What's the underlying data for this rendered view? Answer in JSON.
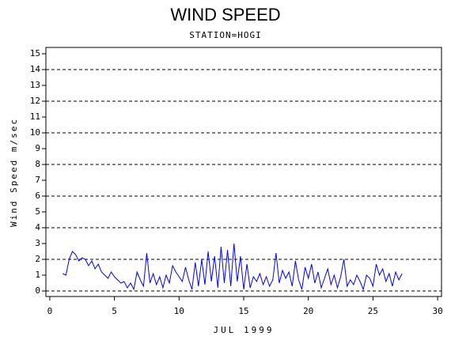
{
  "chart_data": {
    "type": "line",
    "title": "WIND SPEED",
    "subtitle": "STATION=HOGI",
    "y_label": "Wind Speed m/sec",
    "x_label": "JUL 1999",
    "color": "#0000ff",
    "xlim": [
      -0.3,
      30.3
    ],
    "xticks": [
      0,
      5,
      10,
      15,
      20,
      25,
      30
    ],
    "ylim": [
      -0.35,
      15.4
    ],
    "yticks": [
      0,
      1,
      2,
      3,
      4,
      5,
      6,
      7,
      8,
      9,
      10,
      11,
      12,
      13,
      14,
      15
    ],
    "grid": true,
    "x": [
      1,
      1.25,
      1.5,
      1.75,
      2,
      2.25,
      2.5,
      2.75,
      3,
      3.25,
      3.5,
      3.75,
      4,
      4.25,
      4.5,
      4.75,
      5,
      5.25,
      5.5,
      5.75,
      6,
      6.25,
      6.5,
      6.75,
      7,
      7.25,
      7.5,
      7.75,
      8,
      8.25,
      8.5,
      8.75,
      9,
      9.25,
      9.5,
      9.75,
      10,
      10.25,
      10.5,
      10.75,
      11,
      11.25,
      11.5,
      11.75,
      12,
      12.25,
      12.5,
      12.75,
      13,
      13.25,
      13.5,
      13.75,
      14,
      14.25,
      14.5,
      14.75,
      15,
      15.25,
      15.5,
      15.75,
      16,
      16.25,
      16.5,
      16.75,
      17,
      17.25,
      17.5,
      17.75,
      18,
      18.25,
      18.5,
      18.75,
      19,
      19.25,
      19.5,
      19.75,
      20,
      20.25,
      20.5,
      20.75,
      21,
      21.25,
      21.5,
      21.75,
      22,
      22.25,
      22.5,
      22.75,
      23,
      23.25,
      23.5,
      23.75,
      24,
      24.25,
      24.5,
      24.75,
      25,
      25.25,
      25.5,
      25.75,
      26,
      26.25,
      26.5,
      26.75,
      27,
      27.25
    ],
    "values": [
      1.1,
      1.0,
      2.0,
      2.5,
      2.3,
      1.9,
      2.1,
      2.0,
      1.6,
      1.9,
      1.4,
      1.7,
      1.2,
      1.0,
      0.8,
      1.2,
      0.9,
      0.7,
      0.5,
      0.6,
      0.2,
      0.5,
      0.1,
      1.2,
      0.7,
      0.3,
      2.4,
      0.5,
      1.1,
      0.4,
      0.9,
      0.2,
      1.0,
      0.5,
      1.6,
      1.2,
      0.9,
      0.6,
      1.5,
      0.7,
      0.1,
      1.8,
      0.3,
      2.0,
      0.4,
      2.5,
      0.6,
      2.2,
      0.2,
      2.8,
      0.5,
      2.6,
      0.3,
      3.0,
      0.6,
      2.2,
      0.1,
      1.7,
      0.2,
      0.9,
      0.6,
      1.1,
      0.4,
      0.9,
      0.3,
      0.7,
      2.4,
      0.5,
      1.3,
      0.8,
      1.2,
      0.3,
      1.9,
      0.7,
      0.1,
      1.5,
      0.8,
      1.7,
      0.5,
      1.2,
      0.2,
      0.8,
      1.4,
      0.4,
      1.0,
      0.2,
      0.9,
      2.0,
      0.3,
      0.7,
      0.4,
      1.0,
      0.6,
      0.1,
      1.0,
      0.8,
      0.3,
      1.7,
      1.0,
      1.4,
      0.6,
      1.1,
      0.3,
      1.2,
      0.7,
      1.1
    ]
  }
}
